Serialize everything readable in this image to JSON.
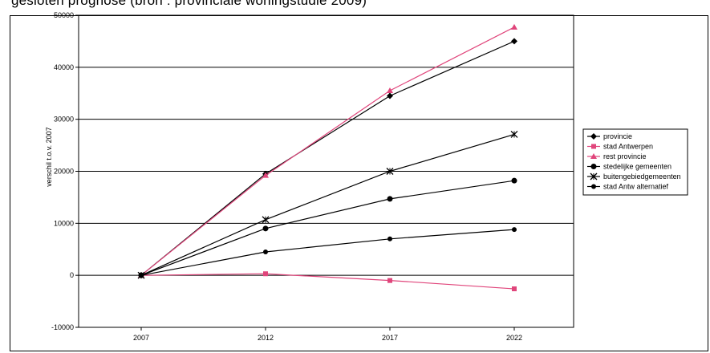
{
  "caption": "gesloten prognose (bron : provinciale woningstudie 2009)",
  "chart_data": {
    "type": "line",
    "title": "",
    "xlabel": "",
    "ylabel": "verschil t.o.v. 2007",
    "categories": [
      "2007",
      "2012",
      "2017",
      "2022"
    ],
    "ylim": [
      -10000,
      50000
    ],
    "yticks": [
      -10000,
      0,
      10000,
      20000,
      30000,
      40000,
      50000
    ],
    "ytick_labels": [
      "-10000",
      "0",
      "10000",
      "20000",
      "30000",
      "40000",
      "50000"
    ],
    "grid": "horizontal",
    "legend_position": "right",
    "series": [
      {
        "name": "provincie",
        "values": [
          0,
          19500,
          34500,
          45000
        ],
        "color": "#000000",
        "marker": "diamond"
      },
      {
        "name": "stad Antwerpen",
        "values": [
          0,
          300,
          -1000,
          -2600
        ],
        "color": "#e0457b",
        "marker": "square"
      },
      {
        "name": "rest provincie",
        "values": [
          0,
          19200,
          35500,
          47700
        ],
        "color": "#e0457b",
        "marker": "triangle"
      },
      {
        "name": "stedelijke gemeenten",
        "values": [
          0,
          9000,
          14700,
          18200
        ],
        "color": "#000000",
        "marker": "circle"
      },
      {
        "name": "buitengebiedgemeenten",
        "values": [
          0,
          10700,
          20000,
          27100
        ],
        "color": "#000000",
        "marker": "x"
      },
      {
        "name": "stad Antw alternatief",
        "values": [
          0,
          4500,
          7000,
          8800
        ],
        "color": "#000000",
        "marker": "dot"
      }
    ]
  }
}
